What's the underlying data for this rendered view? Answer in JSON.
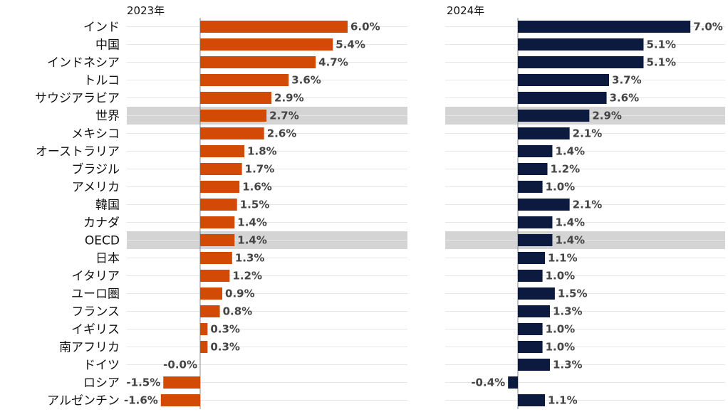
{
  "chart_data": {
    "type": "bar",
    "orientation": "horizontal",
    "categories": [
      "インド",
      "中国",
      "インドネシア",
      "トルコ",
      "サウジアラビア",
      "世界",
      "メキシコ",
      "オーストラリア",
      "ブラジル",
      "アメリカ",
      "韓国",
      "カナダ",
      "OECD",
      "日本",
      "イタリア",
      "ユーロ圏",
      "フランス",
      "イギリス",
      "南アフリカ",
      "ドイツ",
      "ロシア",
      "アルゼンチン"
    ],
    "highlighted_categories": [
      "世界",
      "OECD"
    ],
    "panels": [
      {
        "title": "2023年",
        "color": "#d24a05",
        "values": [
          6.0,
          5.4,
          4.7,
          3.6,
          2.9,
          2.7,
          2.6,
          1.8,
          1.7,
          1.6,
          1.5,
          1.4,
          1.4,
          1.3,
          1.2,
          0.9,
          0.8,
          0.3,
          0.3,
          -0.0,
          -1.5,
          -1.6
        ],
        "labels": [
          "6.0%",
          "5.4%",
          "4.7%",
          "3.6%",
          "2.9%",
          "2.7%",
          "2.6%",
          "1.8%",
          "1.7%",
          "1.6%",
          "1.5%",
          "1.4%",
          "1.4%",
          "1.3%",
          "1.2%",
          "0.9%",
          "0.8%",
          "0.3%",
          "0.3%",
          "-0.0%",
          "-1.5%",
          "-1.6%"
        ]
      },
      {
        "title": "2024年",
        "color": "#0c1a40",
        "values": [
          7.0,
          5.1,
          5.1,
          3.7,
          3.6,
          2.9,
          2.1,
          1.4,
          1.2,
          1.0,
          2.1,
          1.4,
          1.4,
          1.1,
          1.0,
          1.5,
          1.3,
          1.0,
          1.0,
          1.3,
          -0.4,
          1.1
        ],
        "labels": [
          "7.0%",
          "5.1%",
          "5.1%",
          "3.7%",
          "3.6%",
          "2.9%",
          "2.1%",
          "1.4%",
          "1.2%",
          "1.0%",
          "2.1%",
          "1.4%",
          "1.4%",
          "1.1%",
          "1.0%",
          "1.5%",
          "1.3%",
          "1.0%",
          "1.0%",
          "1.3%",
          "-0.4%",
          "1.1%"
        ]
      }
    ],
    "highlight_color": "#d4d4d4",
    "gridline_color": "#e6e6e6",
    "axis_color": "#888888",
    "grid": true,
    "legend": false
  }
}
